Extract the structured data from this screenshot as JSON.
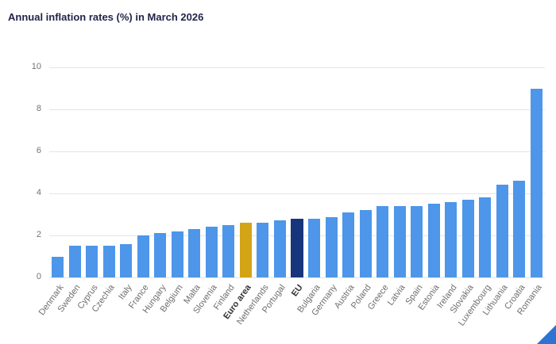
{
  "header": {
    "title": "Annual inflation rates (%) in March 2026"
  },
  "chart_data": {
    "type": "bar",
    "title": "Annual inflation rates (%) in March 2026",
    "xlabel": "",
    "ylabel": "",
    "ylim": [
      0,
      10
    ],
    "yticks": [
      0,
      2,
      4,
      6,
      8,
      10
    ],
    "grid": true,
    "legend": "none",
    "bar_color": "#4d96e9",
    "highlight_colors": {
      "Euro area": "#d4a417",
      "EU": "#17357d"
    },
    "bold_categories": [
      "Euro area",
      "EU"
    ],
    "categories": [
      "Denmark",
      "Sweden",
      "Cyprus",
      "Czechia",
      "Italy",
      "France",
      "Hungary",
      "Belgium",
      "Malta",
      "Slovenia",
      "Finland",
      "Euro area",
      "Netherlands",
      "Portugal",
      "EU",
      "Bulgaria",
      "Germany",
      "Austria",
      "Poland",
      "Greece",
      "Latvia",
      "Spain",
      "Estonia",
      "Ireland",
      "Slovakia",
      "Luxembourg",
      "Lithuania",
      "Croatia",
      "Romania"
    ],
    "values": [
      1.0,
      1.5,
      1.5,
      1.5,
      1.6,
      2.0,
      2.1,
      2.2,
      2.3,
      2.4,
      2.5,
      2.6,
      2.6,
      2.7,
      2.8,
      2.8,
      2.85,
      3.1,
      3.2,
      3.4,
      3.4,
      3.4,
      3.5,
      3.6,
      3.7,
      3.8,
      4.4,
      4.6,
      9.0
    ]
  },
  "decorations": {
    "corner_color": "#2e72d2"
  }
}
